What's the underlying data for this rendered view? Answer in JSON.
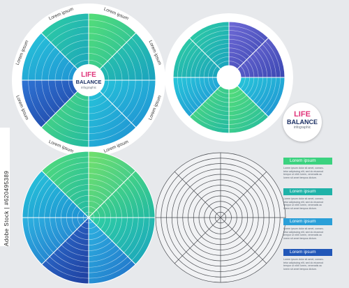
{
  "wheel1": {
    "center_line1": "LIFE",
    "center_line2": "BALANCE",
    "center_line3": "infographic",
    "ring_labels": [
      "Lorem ipsum",
      "Lorem ipsum",
      "Lorem ipsum",
      "Lorem ipsum",
      "Lorem ipsum",
      "Lorem ipsum",
      "Lorem ipsum",
      "Lorem ipsum"
    ]
  },
  "badge": {
    "line1": "LIFE",
    "line2": "BALANCE",
    "line3": "infographic"
  },
  "legend": [
    {
      "label": "Lorem ipsum",
      "color": "#3bd27f",
      "desc": "Lorem ipsum dolor sit amet, consec-\ntetur adipiscing elit, sed do eiusmod\ntempor ut nibh lorem, venenatis ac\nlorem sit amet tempus dictum."
    },
    {
      "label": "Lorem ipsum",
      "color": "#1fb2a8",
      "desc": "Lorem ipsum dolor sit amet, consec-\ntetur adipiscing elit, sed do eiusmod\ntempor ut nibh lorem, venenatis ac\nlorem sit amet tempus dictum."
    },
    {
      "label": "Lorem ipsum",
      "color": "#2a9fd8",
      "desc": "Lorem ipsum dolor sit amet, consec-\ntetur adipiscing elit, sed do eiusmod\ntempor ut nibh lorem, venenatis ac\nlorem sit amet tempus dictum."
    },
    {
      "label": "Lorem ipsum",
      "color": "#2257b8",
      "desc": "Lorem ipsum dolor sit amet, consec-\ntetur adipiscing elit, sed do eiusmod\ntempor ut nibh lorem, venenatis ac\nlorem sit amet tempus dictum."
    }
  ],
  "stock_id": "Adobe Stock | #620495389",
  "colors": {
    "green": "#3dd37c",
    "teal": "#1fb2a8",
    "cyan": "#22c2d8",
    "blue": "#2a8fd8",
    "navy": "#2552b5",
    "purple": "#5a58c9",
    "background": "#e7e9ec"
  }
}
